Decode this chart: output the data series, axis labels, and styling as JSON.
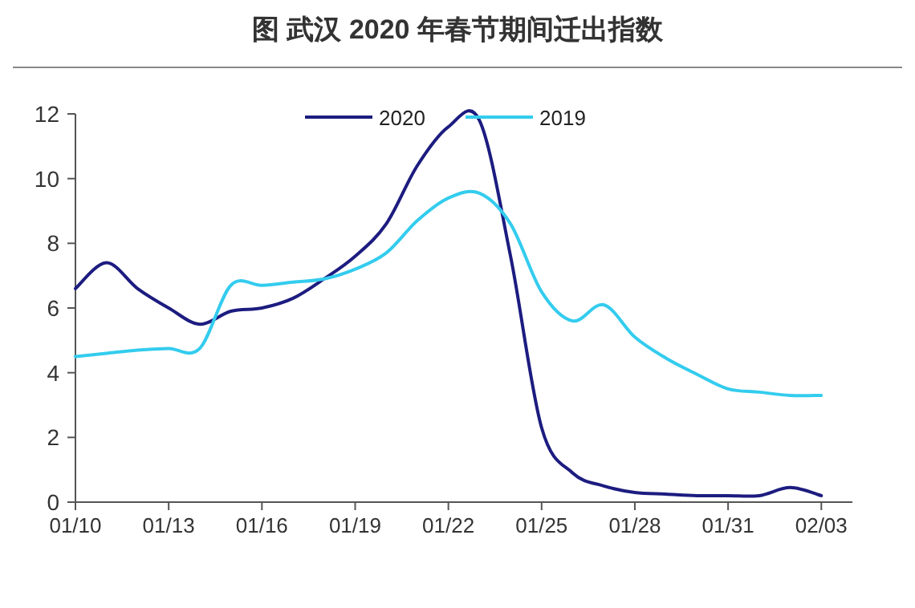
{
  "chart_data": {
    "type": "line",
    "title": "图  武汉 2020 年春节期间迁出指数",
    "x": [
      "--01-10",
      "--01-11",
      "--01-12",
      "--01-13",
      "--01-14",
      "--01-15",
      "--01-16",
      "--01-17",
      "--01-18",
      "--01-19",
      "--01-20",
      "--01-21",
      "--01-22",
      "--01-23",
      "--01-24",
      "--01-25",
      "--01-26",
      "--01-27",
      "--01-28",
      "--01-29",
      "--01-30",
      "--01-31",
      "--02-01",
      "--02-02",
      "--02-03"
    ],
    "series": [
      {
        "name": "2020",
        "color": "#1c1c80",
        "values": [
          6.6,
          7.4,
          6.6,
          6.0,
          5.5,
          5.9,
          6.0,
          6.3,
          6.9,
          7.6,
          8.6,
          10.4,
          11.6,
          11.8,
          7.6,
          2.3,
          0.9,
          0.5,
          0.3,
          0.25,
          0.2,
          0.2,
          0.2,
          0.45,
          0.2
        ]
      },
      {
        "name": "2019",
        "color": "#33ccee",
        "values": [
          4.5,
          4.6,
          4.7,
          4.75,
          4.75,
          6.7,
          6.7,
          6.8,
          6.9,
          7.2,
          7.7,
          8.7,
          9.4,
          9.55,
          8.6,
          6.5,
          5.6,
          6.1,
          5.1,
          4.45,
          3.95,
          3.5,
          3.4,
          3.3,
          3.3
        ]
      }
    ],
    "xlim": [
      "--01-10",
      "--02-04"
    ],
    "xticks": [
      {
        "value": "--01-10",
        "label": "01/10"
      },
      {
        "value": "--01-13",
        "label": "01/13"
      },
      {
        "value": "--01-16",
        "label": "01/16"
      },
      {
        "value": "--01-19",
        "label": "01/19"
      },
      {
        "value": "--01-22",
        "label": "01/22"
      },
      {
        "value": "--01-25",
        "label": "01/25"
      },
      {
        "value": "--01-28",
        "label": "01/28"
      },
      {
        "value": "--01-31",
        "label": "01/31"
      },
      {
        "value": "--02-03",
        "label": "02/03"
      }
    ],
    "ylim": [
      0,
      12
    ],
    "yticks": [
      0,
      2,
      4,
      6,
      8,
      10,
      12
    ],
    "grid": false,
    "legend": "top",
    "marker": "none",
    "line_style": "solid"
  }
}
